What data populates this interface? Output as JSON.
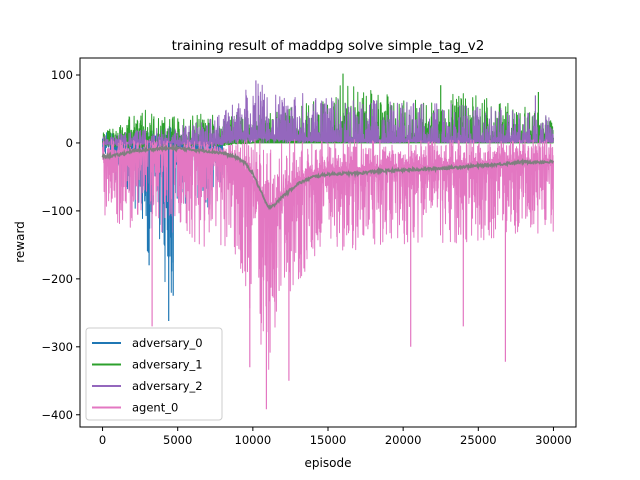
{
  "chart_data": {
    "type": "line",
    "title": "training result of maddpg solve simple_tag_v2",
    "xlabel": "episode",
    "ylabel": "reward",
    "xlim": [
      -1500,
      31500
    ],
    "ylim": [
      -418,
      125
    ],
    "xticks": [
      0,
      5000,
      10000,
      15000,
      20000,
      25000,
      30000
    ],
    "yticks": [
      100,
      0,
      -100,
      -200,
      -300,
      -400
    ],
    "ytick_labels": [
      "100",
      "0",
      "−100",
      "−200",
      "−300",
      "−400"
    ],
    "grid": false,
    "legend_position": "lower-left",
    "series": [
      {
        "name": "adversary_0",
        "color": "#1f77b4",
        "x": [
          0,
          1000,
          2000,
          3000,
          3500,
          4500,
          5000,
          6000,
          7000,
          8000
        ],
        "upper": [
          15,
          18,
          15,
          18,
          20,
          25,
          12,
          15,
          12,
          10
        ],
        "lower": [
          -10,
          -60,
          -80,
          -180,
          -100,
          -260,
          -120,
          -80,
          -100,
          -60
        ],
        "avg": [
          0,
          0,
          0,
          0,
          0,
          0,
          0,
          0,
          0,
          0
        ]
      },
      {
        "name": "adversary_1",
        "color": "#2ca02c",
        "x": [
          0,
          2500,
          5000,
          7500,
          10000,
          12500,
          15000,
          16000,
          17500,
          20000,
          22500,
          25000,
          27500,
          30000
        ],
        "upper": [
          15,
          50,
          40,
          45,
          40,
          55,
          70,
          100,
          80,
          65,
          70,
          75,
          60,
          40
        ],
        "lower": [
          -5,
          -10,
          -5,
          -5,
          0,
          0,
          0,
          0,
          0,
          0,
          0,
          0,
          0,
          0
        ],
        "avg": [
          0,
          0,
          0,
          0,
          0,
          0,
          0,
          0,
          0,
          0,
          0,
          0,
          0,
          0
        ]
      },
      {
        "name": "adversary_2",
        "color": "#9467bd",
        "x": [
          0,
          2500,
          5000,
          7500,
          8500,
          10000,
          10500,
          11000,
          12500,
          15000,
          17500,
          20000,
          22500,
          25000,
          27500,
          30000
        ],
        "upper": [
          10,
          20,
          25,
          40,
          65,
          88,
          90,
          80,
          75,
          70,
          65,
          60,
          60,
          55,
          50,
          40
        ],
        "lower": [
          -5,
          -5,
          -5,
          -5,
          0,
          0,
          0,
          0,
          0,
          0,
          0,
          0,
          0,
          0,
          0,
          0
        ],
        "avg": [
          0,
          0,
          0,
          0,
          5,
          10,
          10,
          8,
          5,
          3,
          2,
          2,
          2,
          2,
          2,
          2
        ]
      },
      {
        "name": "agent_0",
        "color": "#e377c2",
        "x": [
          0,
          2000,
          4000,
          6000,
          8000,
          9000,
          10000,
          10500,
          11000,
          11500,
          12000,
          13000,
          14000,
          15000,
          17500,
          20000,
          22500,
          25000,
          27500,
          30000
        ],
        "upper": [
          5,
          5,
          5,
          5,
          5,
          5,
          5,
          5,
          5,
          5,
          5,
          5,
          5,
          5,
          5,
          5,
          5,
          5,
          5,
          5
        ],
        "lower": [
          -110,
          -130,
          -140,
          -150,
          -160,
          -190,
          -260,
          -300,
          -360,
          -300,
          -250,
          -210,
          -180,
          -170,
          -160,
          -150,
          -150,
          -145,
          -140,
          -130
        ],
        "avg": [
          -20,
          -15,
          -12,
          -12,
          -15,
          -25,
          -55,
          -80,
          -95,
          -90,
          -75,
          -55,
          -45,
          -40,
          -38,
          -36,
          -33,
          -30,
          -28,
          -27
        ]
      }
    ],
    "moving_average": {
      "color": "#7f7f7f",
      "x": [
        0,
        1000,
        2000,
        3000,
        4000,
        5000,
        6000,
        7000,
        8000,
        9000,
        9500,
        10000,
        10500,
        11000,
        11500,
        12000,
        13000,
        14000,
        15000,
        16000,
        17000,
        18000,
        20000,
        22000,
        24000,
        26000,
        28000,
        30000
      ],
      "y": [
        -20,
        -18,
        -12,
        -10,
        -8,
        -8,
        -10,
        -12,
        -15,
        -22,
        -30,
        -45,
        -70,
        -95,
        -90,
        -78,
        -60,
        -50,
        -46,
        -45,
        -45,
        -42,
        -40,
        -38,
        -35,
        -32,
        -28,
        -28
      ]
    },
    "spikes": [
      {
        "series": 0,
        "x": 4400,
        "y": -262
      },
      {
        "series": 0,
        "x": 4700,
        "y": -225
      },
      {
        "series": 0,
        "x": 3100,
        "y": -180
      },
      {
        "series": 3,
        "x": 10900,
        "y": -392
      },
      {
        "series": 3,
        "x": 3300,
        "y": -270
      },
      {
        "series": 3,
        "x": 26800,
        "y": -322
      },
      {
        "series": 3,
        "x": 20500,
        "y": -300
      },
      {
        "series": 3,
        "x": 24000,
        "y": -270
      },
      {
        "series": 3,
        "x": 12400,
        "y": -350
      },
      {
        "series": 3,
        "x": 9800,
        "y": -330
      },
      {
        "series": 1,
        "x": 16000,
        "y": 102
      },
      {
        "series": 1,
        "x": 22500,
        "y": 85
      },
      {
        "series": 1,
        "x": 29000,
        "y": 75
      },
      {
        "series": 2,
        "x": 10200,
        "y": 92
      },
      {
        "series": 2,
        "x": 28800,
        "y": 70
      }
    ]
  }
}
